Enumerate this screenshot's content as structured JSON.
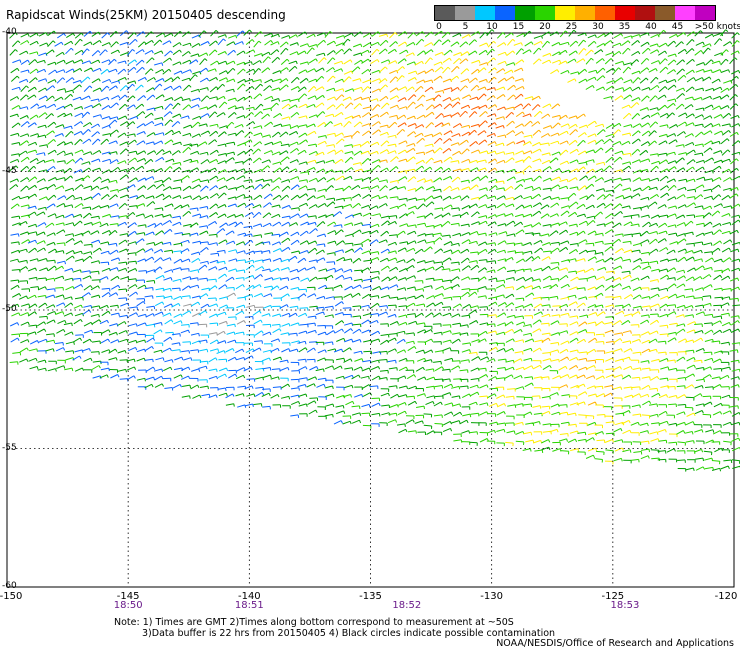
{
  "title": "Rapidscat Winds(25KM) 20150405 descending",
  "legend": {
    "labels": [
      "0",
      "5",
      "10",
      "15",
      "20",
      "25",
      "30",
      "35",
      "40",
      "45",
      ">50 knots"
    ],
    "colors": [
      "#5a5a5a",
      "#9a9a9a",
      "#00c8ff",
      "#0a64ff",
      "#00a000",
      "#2ad400",
      "#ffee00",
      "#ffb000",
      "#ff6000",
      "#e80000",
      "#b01010",
      "#8a5a2a",
      "#ff40ff",
      "#c000c0"
    ]
  },
  "axes": {
    "lat_labels": [
      "-40",
      "-45",
      "-50",
      "-55",
      "-60"
    ],
    "lon_labels": [
      "-150",
      "-145",
      "-140",
      "-135",
      "-130",
      "-125",
      "-120"
    ],
    "time_labels": [
      "18:50",
      "18:51",
      "18:52",
      "18:53"
    ]
  },
  "chart_data": {
    "type": "map",
    "variable": "Rapidscat Winds (25KM) descending pass, 20150405",
    "lon_range": [
      -150,
      -120
    ],
    "lat_range": [
      -60,
      -40
    ],
    "wind_speed_scale_knots": [
      0,
      5,
      10,
      15,
      20,
      25,
      30,
      35,
      40,
      45,
      50
    ],
    "time_ticks": [
      {
        "lon": -145,
        "time": "18:50"
      },
      {
        "lon": -140,
        "time": "18:51"
      },
      {
        "lon": -133.5,
        "time": "18:52"
      },
      {
        "lon": -124.5,
        "time": "18:53"
      }
    ]
  },
  "notes": {
    "line1": "Note: 1) Times are GMT 2)Times along bottom correspond to measurement at ~50S",
    "line2": "3)Data buffer is 22 hrs from 20150405 4) Black circles indicate possible contamination",
    "credit": "NOAA/NESDIS/Office of Research and Applications"
  }
}
